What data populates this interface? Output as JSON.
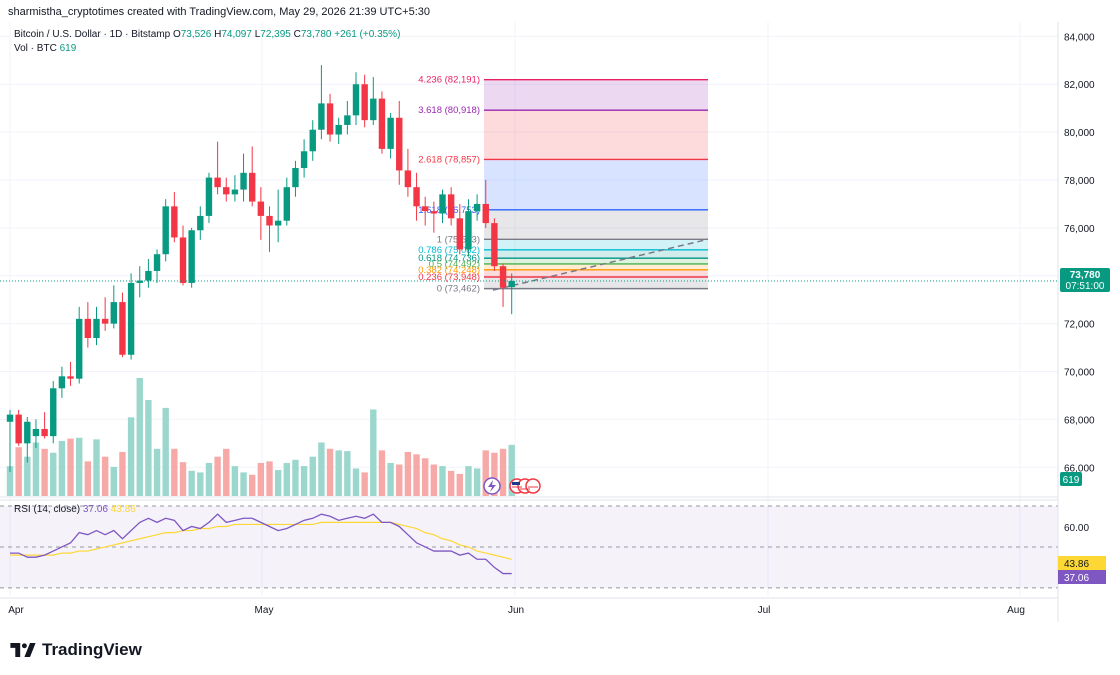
{
  "header": {
    "attribution": "sharmistha_cryptotimes created with TradingView.com, May 29, 2026 21:39 UTC+5:30"
  },
  "legend": {
    "symbol": "Bitcoin / U.S. Dollar · 1D · Bitstamp",
    "o_label": "O",
    "o_value": "73,526",
    "h_label": "H",
    "h_value": "74,097",
    "l_label": "L",
    "l_value": "72,395",
    "c_label": "C",
    "c_value": "73,780",
    "change": "+261 (+0.35%)",
    "vol_label": "Vol · BTC",
    "vol_value": "619"
  },
  "rsi_legend": {
    "label": "RSI (14, close)",
    "rsi_value": "37.06",
    "ma_value": "43.86"
  },
  "price_axis": {
    "ticks": [
      "84,000",
      "82,000",
      "80,000",
      "78,000",
      "76,000",
      "74,000",
      "72,000",
      "70,000",
      "68,000",
      "66,000"
    ],
    "current_price": "73,780",
    "countdown": "07:51:00",
    "volume_badge": "619"
  },
  "rsi_axis": {
    "tick": "60.00",
    "ma_badge": "43.86",
    "rsi_badge": "37.06"
  },
  "time_axis": {
    "labels": [
      "Apr",
      "May",
      "Jun",
      "Jul",
      "Aug"
    ]
  },
  "brand": {
    "name": "TradingView"
  },
  "colors": {
    "up": "#089981",
    "down": "#f23645",
    "rsi": "#7e57c2",
    "rsi_ma": "#fdd835"
  },
  "chart_data": {
    "type": "candlestick",
    "ylim": [
      64800,
      84600
    ],
    "candles": [
      {
        "o": 67900,
        "h": 68400,
        "l": 65800,
        "c": 68200
      },
      {
        "o": 68200,
        "h": 68400,
        "l": 66900,
        "c": 67000
      },
      {
        "o": 67000,
        "h": 68100,
        "l": 66200,
        "c": 67900
      },
      {
        "o": 67300,
        "h": 68000,
        "l": 66800,
        "c": 67600
      },
      {
        "o": 67600,
        "h": 68300,
        "l": 67200,
        "c": 67300
      },
      {
        "o": 67300,
        "h": 69600,
        "l": 67000,
        "c": 69300
      },
      {
        "o": 69300,
        "h": 70200,
        "l": 68900,
        "c": 69800
      },
      {
        "o": 69800,
        "h": 70400,
        "l": 69400,
        "c": 69700
      },
      {
        "o": 69700,
        "h": 72700,
        "l": 69500,
        "c": 72200
      },
      {
        "o": 72200,
        "h": 72900,
        "l": 71000,
        "c": 71400
      },
      {
        "o": 71400,
        "h": 72700,
        "l": 71100,
        "c": 72200
      },
      {
        "o": 72200,
        "h": 73100,
        "l": 71700,
        "c": 72000
      },
      {
        "o": 72000,
        "h": 73600,
        "l": 71800,
        "c": 72900
      },
      {
        "o": 72900,
        "h": 73300,
        "l": 70600,
        "c": 70700
      },
      {
        "o": 70700,
        "h": 74100,
        "l": 70500,
        "c": 73700
      },
      {
        "o": 73700,
        "h": 74400,
        "l": 73100,
        "c": 73800
      },
      {
        "o": 73800,
        "h": 74700,
        "l": 73500,
        "c": 74200
      },
      {
        "o": 74200,
        "h": 75100,
        "l": 73700,
        "c": 74900
      },
      {
        "o": 74900,
        "h": 77200,
        "l": 74600,
        "c": 76900
      },
      {
        "o": 76900,
        "h": 77500,
        "l": 75400,
        "c": 75600
      },
      {
        "o": 75600,
        "h": 76100,
        "l": 73600,
        "c": 73700
      },
      {
        "o": 73700,
        "h": 76000,
        "l": 73500,
        "c": 75900
      },
      {
        "o": 75900,
        "h": 76900,
        "l": 75500,
        "c": 76500
      },
      {
        "o": 76500,
        "h": 78300,
        "l": 76200,
        "c": 78100
      },
      {
        "o": 78100,
        "h": 79600,
        "l": 77400,
        "c": 77700
      },
      {
        "o": 77700,
        "h": 78100,
        "l": 77100,
        "c": 77400
      },
      {
        "o": 77400,
        "h": 78200,
        "l": 77100,
        "c": 77600
      },
      {
        "o": 77600,
        "h": 79100,
        "l": 77100,
        "c": 78300
      },
      {
        "o": 78300,
        "h": 79400,
        "l": 76900,
        "c": 77100
      },
      {
        "o": 77100,
        "h": 77700,
        "l": 75500,
        "c": 76500
      },
      {
        "o": 76500,
        "h": 76900,
        "l": 75000,
        "c": 76100
      },
      {
        "o": 76100,
        "h": 77600,
        "l": 75400,
        "c": 76300
      },
      {
        "o": 76300,
        "h": 78100,
        "l": 76100,
        "c": 77700
      },
      {
        "o": 77700,
        "h": 78800,
        "l": 77300,
        "c": 78500
      },
      {
        "o": 78500,
        "h": 79700,
        "l": 78100,
        "c": 79200
      },
      {
        "o": 79200,
        "h": 80500,
        "l": 78800,
        "c": 80100
      },
      {
        "o": 80100,
        "h": 82800,
        "l": 79700,
        "c": 81200
      },
      {
        "o": 81200,
        "h": 81600,
        "l": 79600,
        "c": 79900
      },
      {
        "o": 79900,
        "h": 80600,
        "l": 79500,
        "c": 80300
      },
      {
        "o": 80300,
        "h": 81300,
        "l": 79900,
        "c": 80700
      },
      {
        "o": 80700,
        "h": 82500,
        "l": 80300,
        "c": 82000
      },
      {
        "o": 82000,
        "h": 82400,
        "l": 80200,
        "c": 80500
      },
      {
        "o": 80500,
        "h": 82300,
        "l": 80300,
        "c": 81400
      },
      {
        "o": 81400,
        "h": 81700,
        "l": 79100,
        "c": 79300
      },
      {
        "o": 79300,
        "h": 80800,
        "l": 78900,
        "c": 80600
      },
      {
        "o": 80600,
        "h": 81300,
        "l": 77800,
        "c": 78400
      },
      {
        "o": 78400,
        "h": 79300,
        "l": 77300,
        "c": 77700
      },
      {
        "o": 77700,
        "h": 78300,
        "l": 76300,
        "c": 76900
      },
      {
        "o": 76900,
        "h": 77300,
        "l": 76100,
        "c": 76700
      },
      {
        "o": 76700,
        "h": 77100,
        "l": 75800,
        "c": 76600
      },
      {
        "o": 76600,
        "h": 77600,
        "l": 76200,
        "c": 77400
      },
      {
        "o": 77400,
        "h": 77700,
        "l": 76100,
        "c": 76400
      },
      {
        "o": 76400,
        "h": 77000,
        "l": 74900,
        "c": 75100
      },
      {
        "o": 75100,
        "h": 77200,
        "l": 74800,
        "c": 76700
      },
      {
        "o": 76700,
        "h": 77400,
        "l": 76300,
        "c": 77000
      },
      {
        "o": 77000,
        "h": 78000,
        "l": 76000,
        "c": 76200
      },
      {
        "o": 76200,
        "h": 76400,
        "l": 74200,
        "c": 74400
      },
      {
        "o": 74400,
        "h": 74500,
        "l": 72700,
        "c": 73500
      },
      {
        "o": 73526,
        "h": 74097,
        "l": 72395,
        "c": 73780
      }
    ],
    "volumes": [
      38,
      62,
      50,
      68,
      60,
      55,
      70,
      73,
      74,
      44,
      72,
      50,
      37,
      56,
      100,
      150,
      122,
      60,
      112,
      60,
      43,
      32,
      30,
      42,
      50,
      60,
      38,
      30,
      27,
      42,
      44,
      33,
      42,
      46,
      38,
      50,
      68,
      60,
      58,
      57,
      35,
      30,
      110,
      58,
      42,
      40,
      56,
      53,
      48,
      40,
      38,
      32,
      28,
      38,
      35,
      58,
      55,
      60,
      65
    ]
  },
  "fibonacci": {
    "levels": [
      {
        "label": "4.236 (82,191)",
        "value": 82191,
        "color": "#e91e63"
      },
      {
        "label": "3.618 (80,918)",
        "value": 80918,
        "color": "#9c27b0"
      },
      {
        "label": "2.618 (78,857)",
        "value": 78857,
        "color": "#f23645"
      },
      {
        "label": "1.618 (76,753)",
        "value": 76753,
        "color": "#2962ff"
      },
      {
        "label": "1 (75,523)",
        "value": 75523,
        "color": "#787b86"
      },
      {
        "label": "0.786 (75,082)",
        "value": 75082,
        "color": "#00bcd4"
      },
      {
        "label": "0.618 (74,736)",
        "value": 74736,
        "color": "#009688"
      },
      {
        "label": "0.5 (74,492)",
        "value": 74492,
        "color": "#4caf50"
      },
      {
        "label": "0.382 (74,248)",
        "value": 74248,
        "color": "#ff9800"
      },
      {
        "label": "0.236 (73,948)",
        "value": 73948,
        "color": "#f23645"
      },
      {
        "label": "0 (73,462)",
        "value": 73462,
        "color": "#787b86"
      }
    ]
  },
  "rsi_data": {
    "ylim": [
      28,
      70
    ],
    "rsi": [
      47,
      47,
      45,
      45,
      46,
      48,
      50,
      52,
      57,
      56,
      58,
      56,
      58,
      54,
      58,
      62,
      64,
      62,
      64,
      63,
      58,
      60,
      59,
      62,
      66,
      62,
      63,
      64,
      64,
      62,
      60,
      58,
      59,
      61,
      63,
      64,
      66,
      65,
      63,
      64,
      65,
      64,
      66,
      62,
      62,
      60,
      56,
      52,
      50,
      48,
      48,
      48,
      46,
      47,
      44,
      44,
      40,
      37,
      37
    ],
    "ma": [
      46,
      46,
      46,
      46,
      46,
      46,
      47,
      47,
      48,
      48,
      49,
      50,
      51,
      52,
      53,
      54,
      55,
      56,
      57,
      57,
      58,
      58,
      59,
      59,
      60,
      60,
      61,
      61,
      61,
      61,
      61,
      61,
      61,
      61,
      61,
      61,
      62,
      62,
      62,
      62,
      62,
      62,
      62,
      62,
      62,
      61,
      60,
      59,
      57,
      56,
      54,
      53,
      51,
      50,
      48,
      47,
      46,
      45,
      43.9
    ]
  }
}
